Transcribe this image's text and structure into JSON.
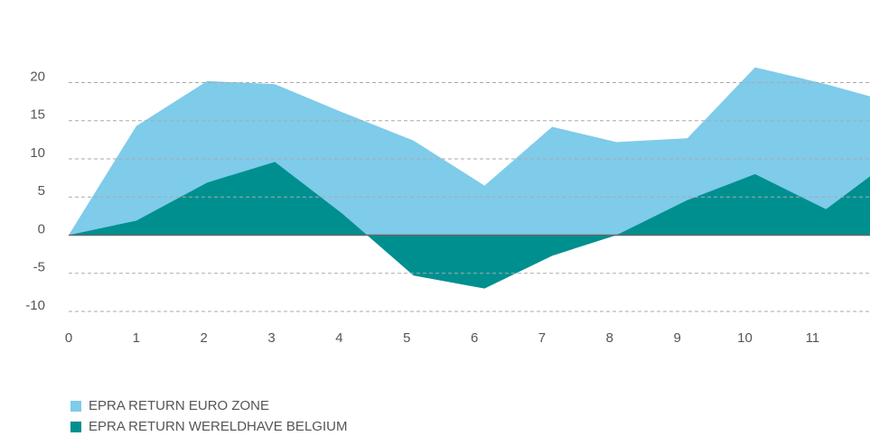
{
  "chart_data": {
    "type": "area",
    "x": [
      0,
      1,
      2.05,
      3.05,
      4.05,
      5.1,
      6.15,
      7.15,
      8.1,
      9.15,
      10.15,
      11.2,
      11.85
    ],
    "series": [
      {
        "name": "EPRA RETURN EURO ZONE",
        "color": "#7ecbea",
        "values": [
          0,
          14.3,
          20.2,
          19.8,
          16.1,
          12.4,
          6.5,
          14.2,
          12.2,
          12.7,
          22,
          19.8,
          18.2
        ]
      },
      {
        "name": "EPRA RETURN WERELDHAVE BELGIUM",
        "color": "#008f8f",
        "values": [
          0,
          1.9,
          6.9,
          9.6,
          2.8,
          -5.3,
          -7,
          -2.7,
          0,
          4.6,
          8,
          3.4,
          7.7
        ]
      }
    ],
    "xlim": [
      0,
      11.85
    ],
    "xticks": [
      0,
      1,
      2,
      3,
      4,
      5,
      6,
      7,
      8,
      9,
      10,
      11
    ],
    "ylim": [
      -10,
      24
    ],
    "yticks": [
      -10,
      -5,
      0,
      5,
      10,
      15,
      20
    ],
    "grid": true,
    "legend": "bottom-left"
  }
}
